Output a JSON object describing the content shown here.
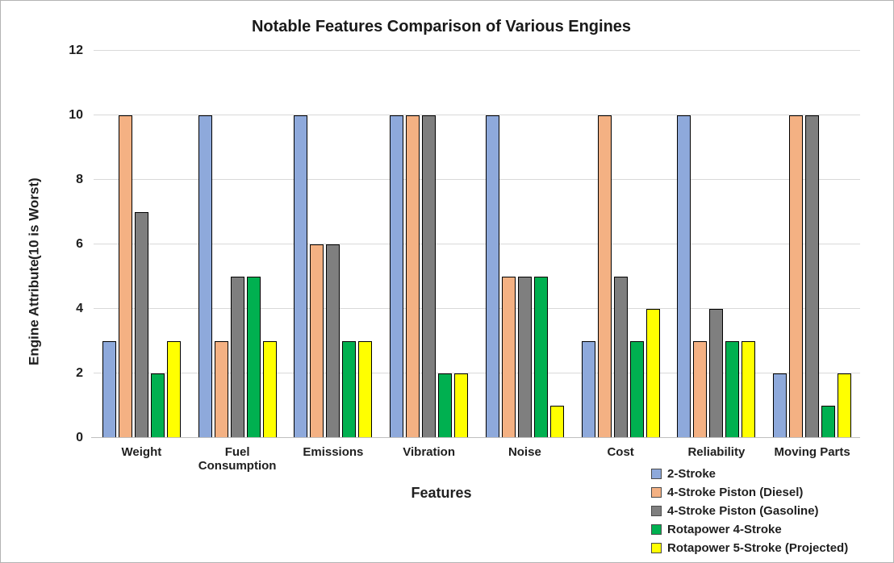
{
  "chart_data": {
    "type": "bar",
    "title": "Notable Features Comparison of Various Engines",
    "xlabel": "Features",
    "ylabel_lines": [
      "Engine Attribute",
      "(10 is Worst)"
    ],
    "ylim": [
      0,
      12
    ],
    "yticks": [
      0,
      2,
      4,
      6,
      8,
      10,
      12
    ],
    "grid": true,
    "legend_position": "bottom-right",
    "categories": [
      "Weight",
      "Fuel Consumption",
      "Emissions",
      "Vibration",
      "Noise",
      "Cost",
      "Reliability",
      "Moving Parts"
    ],
    "series": [
      {
        "name": "2-Stroke",
        "color": "#8EA9DB",
        "values": [
          3,
          10,
          10,
          10,
          10,
          3,
          10,
          2
        ]
      },
      {
        "name": "4-Stroke Piston (Diesel)",
        "color": "#F4B183",
        "values": [
          10,
          3,
          6,
          10,
          5,
          10,
          3,
          10
        ]
      },
      {
        "name": "4-Stroke Piston (Gasoline)",
        "color": "#7F7F7F",
        "values": [
          7,
          5,
          6,
          10,
          5,
          5,
          4,
          10
        ]
      },
      {
        "name": "Rotapower 4-Stroke",
        "color": "#00B050",
        "values": [
          2,
          5,
          3,
          2,
          5,
          3,
          3,
          1
        ]
      },
      {
        "name": "Rotapower 5-Stroke (Projected)",
        "color": "#FFFF00",
        "values": [
          3,
          3,
          3,
          2,
          1,
          4,
          3,
          2
        ]
      }
    ]
  }
}
